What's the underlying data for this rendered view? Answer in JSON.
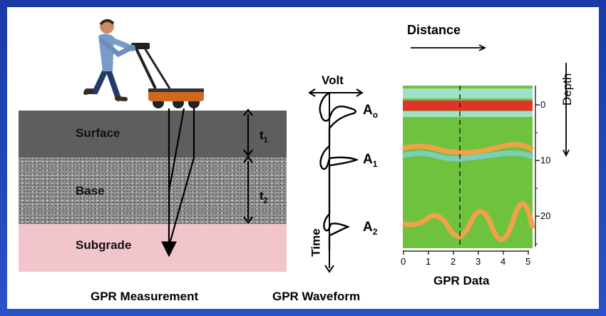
{
  "layers": {
    "surface": "Surface",
    "base": "Base",
    "subgrade": "Subgrade"
  },
  "times": {
    "t1": "t",
    "t1_sub": "1",
    "t2": "t",
    "t2_sub": "2"
  },
  "waveform": {
    "volt_label": "Volt",
    "time_label": "Time",
    "peaks": [
      {
        "label": "A",
        "sub": "o"
      },
      {
        "label": "A",
        "sub": "1"
      },
      {
        "label": "A",
        "sub": "2"
      }
    ]
  },
  "gpr_data": {
    "distance_label": "Distance",
    "depth_label": "Depth",
    "x_ticks": [
      "0",
      "1",
      "2",
      "3",
      "4",
      "5"
    ],
    "depth_ticks": [
      "0",
      "10",
      "20"
    ],
    "background_color": "#6fc23e",
    "band_colors": {
      "top_light": "#9fe0c8",
      "red": "#e2322a",
      "orange": "#f0a24a",
      "teal": "#7ccfc0"
    }
  },
  "captions": {
    "measurement": "GPR Measurement",
    "waveform": "GPR Waveform",
    "data": "GPR Data"
  }
}
